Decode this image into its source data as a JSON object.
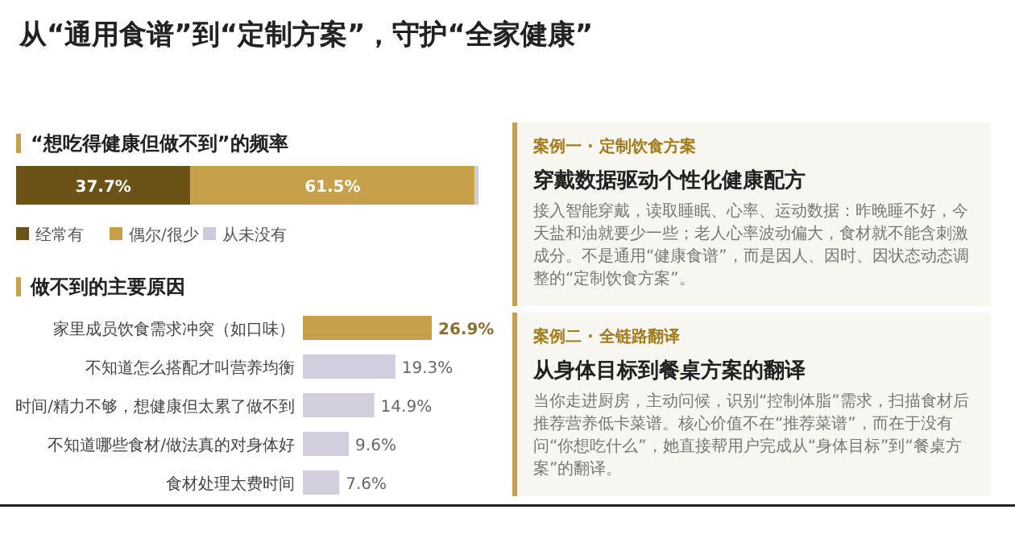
{
  "chart_data": [
    {
      "type": "other",
      "title": "从“通用食谱”到“定制方案”，守护“全家健康”"
    },
    {
      "type": "bar",
      "stacked": true,
      "orientation": "horizontal",
      "title": "“想吃得健康但做不到”的频率",
      "categories": [
        null
      ],
      "legend": "bottom left",
      "series": [
        {
          "name": "经常有",
          "color": "#6b5318",
          "values": [
            37.7
          ],
          "value_labels": [
            "37.7%"
          ]
        },
        {
          "name": "偶尔/很少",
          "color": "#c6a04a",
          "values": [
            61.5
          ],
          "value_labels": [
            "61.5%"
          ]
        },
        {
          "name": "从未没有",
          "color": "#cfcadb",
          "values": [
            0.8
          ],
          "value_labels": [
            null
          ]
        }
      ]
    },
    {
      "type": "bar",
      "orientation": "horizontal",
      "title": "做不到的主要原因",
      "categories": [
        "家里成员饮食需求冲突（如口味）",
        "不知道怎么搭配才叫营养均衡",
        "时间/精力不够，想健康但太累了做不到",
        "不知道哪些食材/做法真的对身体好",
        "食材处理太费时间"
      ],
      "values": [
        26.9,
        19.3,
        14.9,
        9.6,
        7.6
      ],
      "colors": [
        "#c6a04a",
        "#d3cede",
        "#d3cede",
        "#d3cede",
        "#d3cede"
      ],
      "value_labels": [
        "26.9%",
        "19.3%",
        "14.9%",
        "9.6%",
        "7.6%"
      ]
    },
    {
      "type": "other",
      "subtitle": "案例一 · 定制饮食方案",
      "title": "穿戴数据驱动个性化健康配方",
      "annotations": [
        "接入智能穿戴，读取睡眠、心率、运动数据：昨晚睡不好，今天盐和油就要少一些；老人心率波动偏大，食材就不能含刺激成分。不是通用“健康食谱”，而是因人、因时、因状态动态调整的“定制饮食方案”。"
      ]
    },
    {
      "type": "other",
      "subtitle": "案例二 · 全链路翻译",
      "title": "从身体目标到餐桌方案的翻译",
      "annotations": [
        "当你走进厨房，主动问候，识别“控制体脂”需求，扫描食材后推荐营养低卡菜谱。核心价值不在“推荐菜谱”，而在于没有问“你想吃什么”，她直接帮用户完成从“身体目标”到“餐桌方案”的翻译。"
      ]
    }
  ]
}
